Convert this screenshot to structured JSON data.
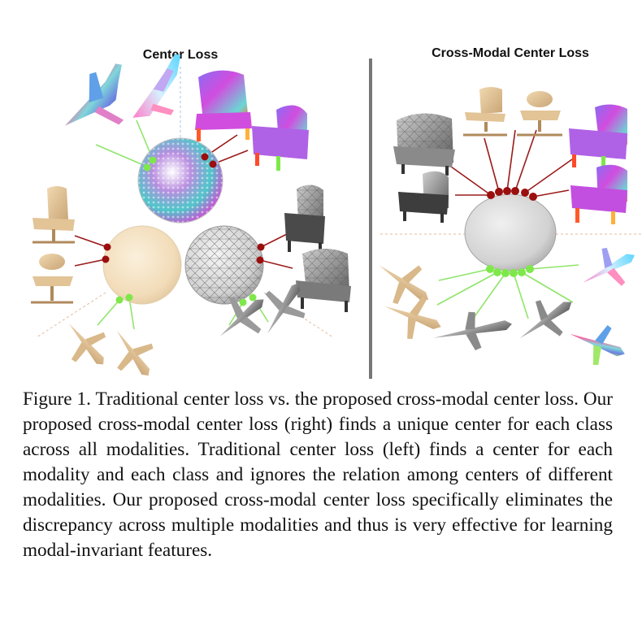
{
  "figure": {
    "left_panel_title": "Center Loss",
    "right_panel_title": "Cross-Modal Center Loss",
    "colors": {
      "image_modality_node": "#8b0000",
      "pointcloud_modality_node": "#7ee84a",
      "divider": "#777777",
      "mesh_center": "#d6d6d6",
      "image_center": "#f5e2c4",
      "shared_center": "#d4d4d4"
    }
  },
  "caption": {
    "text": "Figure 1. Traditional center loss vs.  the proposed cross-modal center loss. Our proposed cross-modal center loss (right) finds a unique center for each class across all modalities. Traditional cen­ter loss (left) finds a center for each modality and each class and ignores the relation among centers of different modalities.  Our proposed cross-modal center loss specifically eliminates the dis­crepancy across multiple modalities and thus is very effective for learning modal-invariant features."
  }
}
